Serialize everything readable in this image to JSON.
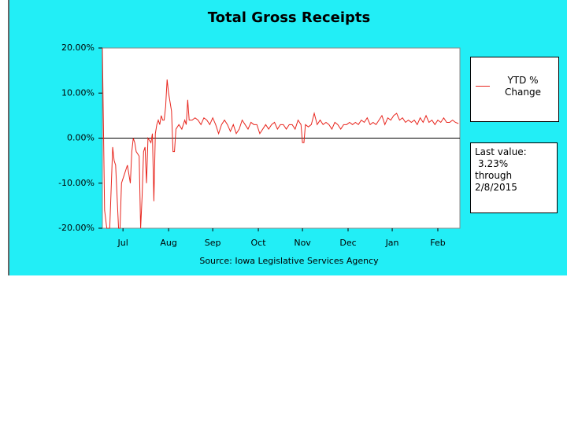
{
  "chart_data": {
    "type": "line",
    "title": "Total Gross Receipts",
    "source": "Source: Iowa Legislative Services Agency",
    "x": [
      0,
      1.5,
      3,
      5,
      7,
      8,
      9,
      11,
      12,
      13,
      15,
      17,
      19,
      20,
      21,
      22,
      23,
      25,
      26,
      27,
      28,
      29,
      30,
      31,
      33,
      34,
      35,
      36,
      37,
      38,
      39,
      40,
      41,
      42,
      43,
      44,
      45,
      46,
      47,
      48,
      49,
      50,
      52,
      54,
      56,
      57,
      58,
      59,
      61,
      63,
      65,
      67,
      69,
      71,
      73,
      75,
      77,
      79,
      81,
      83,
      85,
      87,
      89,
      91,
      93,
      95,
      97,
      99,
      101,
      103,
      105,
      107,
      109,
      111,
      113,
      115,
      117,
      119,
      121,
      123,
      125,
      127,
      129,
      131,
      133,
      135,
      136,
      137,
      138,
      140,
      142,
      144,
      146,
      148,
      150,
      152,
      154,
      156,
      158,
      160,
      162,
      164,
      166,
      168,
      170,
      172,
      174,
      176,
      178,
      180,
      182,
      184,
      186,
      188,
      190,
      192,
      194,
      196,
      198,
      200,
      202,
      204,
      206,
      208,
      210,
      212,
      214,
      216,
      218,
      220,
      222,
      224,
      226,
      228,
      230,
      232,
      234,
      236,
      238,
      240,
      242
    ],
    "series": [
      {
        "name": "YTD % Change",
        "color": "#e8261e",
        "values": [
          20,
          -16,
          -20,
          -20,
          -2,
          -5,
          -6,
          -20,
          -20,
          -10,
          -8,
          -6,
          -10,
          -3,
          0,
          -1,
          -3,
          -4,
          -20,
          -13,
          -3,
          -2,
          -10,
          0,
          -1,
          1,
          -14,
          1,
          3,
          4,
          3,
          5,
          4,
          4,
          7,
          13,
          10,
          8,
          6,
          -3,
          -3,
          2,
          3,
          2,
          4,
          3,
          8.5,
          4,
          4,
          4.5,
          4,
          3,
          4.5,
          4,
          3,
          4.5,
          3,
          1,
          3,
          4,
          3,
          1.5,
          3,
          1,
          2,
          4,
          3,
          2,
          3.5,
          3,
          3,
          1,
          2,
          3,
          2,
          3,
          3.5,
          2,
          3,
          3,
          2,
          3,
          3,
          2,
          4,
          3,
          -1,
          -1,
          3,
          2.5,
          3,
          5.5,
          3,
          4,
          3,
          3.5,
          3,
          2,
          3.5,
          3,
          2,
          3,
          3,
          3.5,
          3,
          3.5,
          3,
          4,
          3.5,
          4.5,
          3,
          3.5,
          3,
          4,
          5,
          3,
          4.5,
          4,
          5,
          5.5,
          4,
          4.5,
          3.5,
          4,
          3.5,
          4,
          3,
          4.5,
          3.5,
          5,
          3.5,
          4,
          3,
          4,
          3.5,
          4.5,
          3.5,
          3.5,
          4,
          3.5,
          3.23
        ]
      }
    ],
    "xlim": [
      0,
      243
    ],
    "xticks": [
      {
        "value": 14,
        "label": "Jul"
      },
      {
        "value": 45,
        "label": "Aug"
      },
      {
        "value": 75,
        "label": "Sep"
      },
      {
        "value": 106,
        "label": "Oct"
      },
      {
        "value": 136,
        "label": "Nov"
      },
      {
        "value": 167,
        "label": "Dec"
      },
      {
        "value": 197,
        "label": "Jan"
      },
      {
        "value": 228,
        "label": "Feb"
      }
    ],
    "ylim": [
      -20,
      20
    ],
    "yticks": [
      {
        "value": 20,
        "label": "20.00%"
      },
      {
        "value": 10,
        "label": "10.00%"
      },
      {
        "value": 0,
        "label": "0.00%"
      },
      {
        "value": -10,
        "label": "-10.00%"
      },
      {
        "value": -20,
        "label": "-20.00%"
      }
    ],
    "annotation": [
      "Last value:",
      "3.23%",
      "through",
      "2/8/2015"
    ]
  }
}
